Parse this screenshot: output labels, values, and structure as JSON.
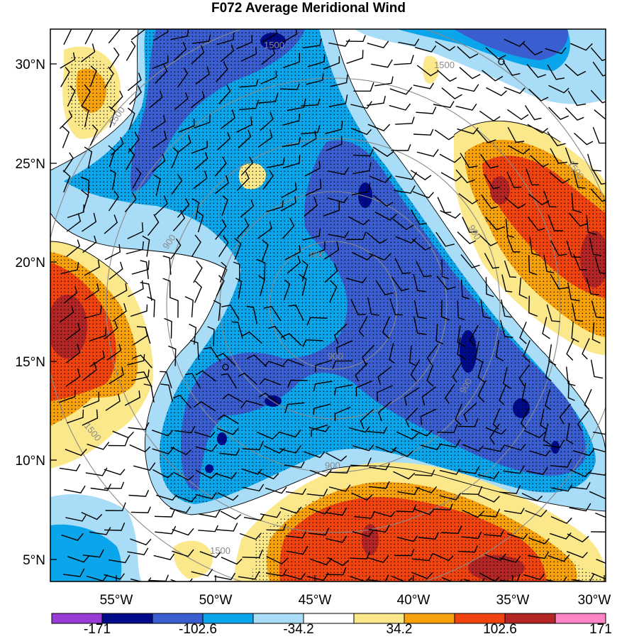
{
  "title": "F072 Average Meridional Wind",
  "map": {
    "latitude_labels": [
      "30°N",
      "25°N",
      "20°N",
      "15°N",
      "10°N",
      "5°N"
    ],
    "longitude_labels": [
      "55°W",
      "50°W",
      "45°W",
      "40°W",
      "35°W",
      "30°W"
    ],
    "contour_labels": [
      "1500",
      "1500",
      "1500",
      "900",
      "900",
      "900",
      "900",
      "900",
      "900",
      "1500",
      "1500",
      "1500"
    ],
    "colors": {
      "n171": "#9b3bd6",
      "n137": "#000b8c",
      "n103": "#3a5ed0",
      "n68": "#0aa5ea",
      "n34": "#a8dcf7",
      "zero": "#ffffff",
      "p34": "#fbe88a",
      "p68": "#f7a20c",
      "p103": "#f0430f",
      "p137": "#b42525",
      "p171": "#ff85c5"
    }
  },
  "colorbar": {
    "labels": [
      "-171",
      "-102.6",
      "-34.2",
      "34.2",
      "102.6",
      "171"
    ],
    "colors": [
      "#9b3bd6",
      "#000b8c",
      "#3a5ed0",
      "#0aa5ea",
      "#a8dcf7",
      "#ffffff",
      "#fbe88a",
      "#f7a20c",
      "#f0430f",
      "#b42525",
      "#ff85c5"
    ]
  }
}
